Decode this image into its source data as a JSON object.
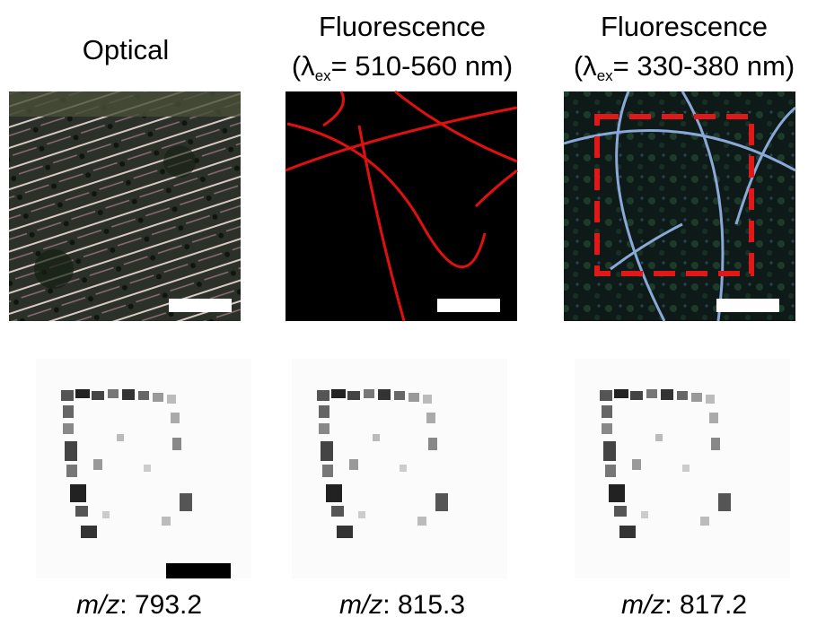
{
  "top_panels": [
    {
      "title": "Optical"
    },
    {
      "title": "Fluorescence",
      "line2_open": "(λ",
      "line2_sub": "ex",
      "line2_rest": "= 510-560 nm)"
    },
    {
      "title": "Fluorescence",
      "line2_open": "(λ",
      "line2_sub": "ex",
      "line2_rest": "= 330-380 nm)"
    }
  ],
  "bottom_panels": [
    {
      "prefix": "m/z",
      "value": ": 793.2"
    },
    {
      "prefix": "m/z",
      "value": ": 815.3"
    },
    {
      "prefix": "m/z",
      "value": ": 817.2"
    }
  ]
}
